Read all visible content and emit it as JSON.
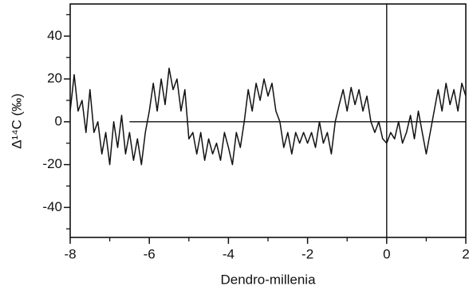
{
  "chart_data": {
    "type": "line",
    "x_label": "Dendro-millenia",
    "y_label": "Δ¹⁴C (‰)",
    "xlim": [
      -8,
      2
    ],
    "ylim": [
      -54,
      55
    ],
    "xticks": [
      -8,
      -6,
      -4,
      -2,
      0,
      2
    ],
    "yticks": [
      -40,
      -20,
      0,
      20,
      40
    ],
    "xminorticks": [
      -7,
      -5,
      -3,
      -1,
      1
    ],
    "yminorticks": [
      -50,
      -30,
      -10,
      10,
      30,
      50
    ],
    "reference_lines": {
      "x": 0,
      "y": 0
    },
    "series": [
      {
        "color": "#111111",
        "x": [
          -8.0,
          -7.9,
          -7.8,
          -7.7,
          -7.6,
          -7.5,
          -7.4,
          -7.3,
          -7.2,
          -7.1,
          -7.0,
          -6.9,
          -6.8,
          -6.7,
          -6.6,
          -6.5,
          -6.4,
          -6.3,
          -6.2,
          -6.1,
          -6.0,
          -5.9,
          -5.8,
          -5.7,
          -5.6,
          -5.5,
          -5.4,
          -5.3,
          -5.2,
          -5.1,
          -5.0,
          -4.9,
          -4.8,
          -4.7,
          -4.6,
          -4.5,
          -4.4,
          -4.3,
          -4.2,
          -4.1,
          -4.0,
          -3.9,
          -3.8,
          -3.7,
          -3.6,
          -3.5,
          -3.4,
          -3.3,
          -3.2,
          -3.1,
          -3.0,
          -2.9,
          -2.8,
          -2.7,
          -2.6,
          -2.5,
          -2.4,
          -2.3,
          -2.2,
          -2.1,
          -2.0,
          -1.9,
          -1.8,
          -1.7,
          -1.6,
          -1.5,
          -1.4,
          -1.3,
          -1.2,
          -1.1,
          -1.0,
          -0.9,
          -0.8,
          -0.7,
          -0.6,
          -0.5,
          -0.4,
          -0.3,
          -0.2,
          -0.1,
          0.0,
          0.1,
          0.2,
          0.3,
          0.4,
          0.5,
          0.6,
          0.7,
          0.8,
          0.9,
          1.0,
          1.1,
          1.2,
          1.3,
          1.4,
          1.5,
          1.6,
          1.7,
          1.8,
          1.9,
          2.0
        ],
        "values": [
          5,
          22,
          5,
          10,
          -5,
          15,
          -5,
          0,
          -15,
          -5,
          -20,
          0,
          -12,
          3,
          -15,
          -5,
          -18,
          -8,
          -20,
          -5,
          5,
          18,
          5,
          20,
          8,
          25,
          15,
          20,
          5,
          15,
          -8,
          -5,
          -15,
          -5,
          -18,
          -8,
          -15,
          -10,
          -18,
          -5,
          -12,
          -20,
          -5,
          -12,
          0,
          15,
          5,
          18,
          10,
          20,
          12,
          18,
          5,
          0,
          -12,
          -5,
          -15,
          -5,
          -10,
          -5,
          -10,
          -5,
          -12,
          0,
          -10,
          -5,
          -15,
          0,
          8,
          15,
          5,
          16,
          8,
          15,
          5,
          12,
          0,
          -5,
          0,
          -8,
          -10,
          -5,
          -8,
          0,
          -10,
          -5,
          3,
          -8,
          5,
          -5,
          -15,
          -5,
          5,
          15,
          5,
          18,
          8,
          15,
          5,
          18,
          12
        ]
      }
    ]
  }
}
